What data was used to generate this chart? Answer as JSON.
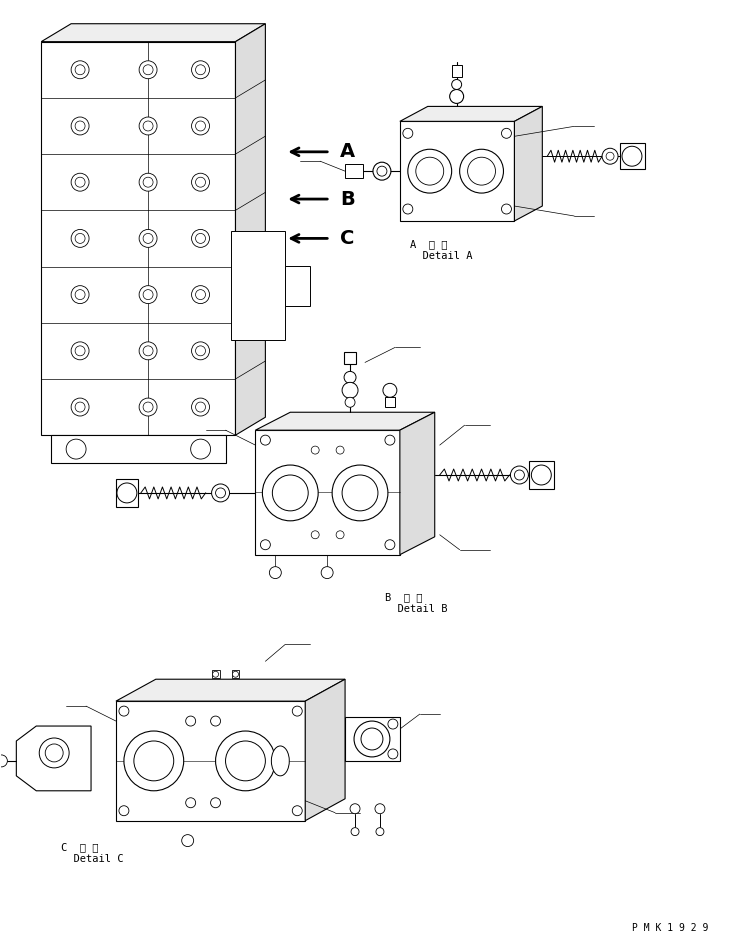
{
  "background_color": "#ffffff",
  "figsize": [
    7.29,
    9.5
  ],
  "dpi": 100,
  "labels": {
    "A_detail": "A  詳 細\n  Detail A",
    "B_detail": "B  詳 細\n  Detail B",
    "C_detail": "C  詳 細\n  Detail C",
    "watermark": "P M K 1 9 2 9"
  },
  "line_color": "#000000",
  "arrow_labels": [
    "A",
    "B",
    "C"
  ]
}
